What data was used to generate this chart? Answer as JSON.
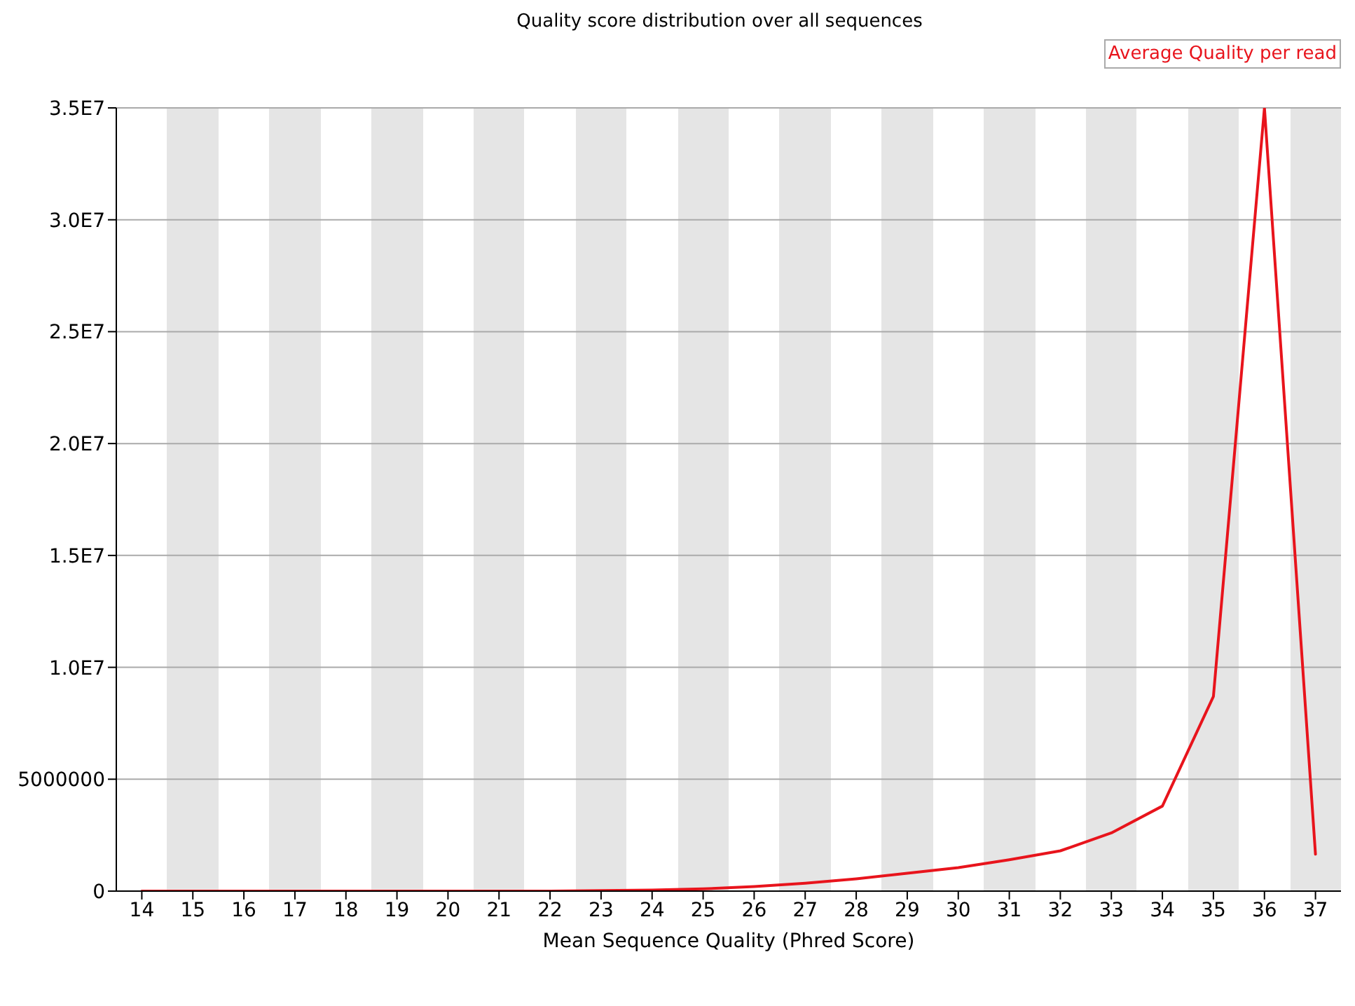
{
  "chart_data": {
    "type": "line",
    "title": "Quality score distribution over all sequences",
    "xlabel": "Mean Sequence Quality (Phred Score)",
    "categories": [
      "14",
      "15",
      "16",
      "17",
      "18",
      "19",
      "20",
      "21",
      "22",
      "23",
      "24",
      "25",
      "26",
      "27",
      "28",
      "29",
      "30",
      "31",
      "32",
      "33",
      "34",
      "35",
      "36",
      "37"
    ],
    "series": [
      {
        "name": "Average Quality per read",
        "color": "#e8141c",
        "values": [
          0,
          0,
          0,
          0,
          0,
          0,
          0,
          0,
          0,
          20000,
          50000,
          100000,
          200000,
          350000,
          550000,
          800000,
          1050000,
          1400000,
          1800000,
          2600000,
          3800000,
          8700000,
          35000000,
          1650000
        ]
      }
    ],
    "ylim": [
      0,
      35000000
    ],
    "yticks": [
      0,
      5000000,
      {
        "value": 10000000,
        "label": "1.0E7"
      },
      {
        "value": 15000000,
        "label": "1.5E7"
      },
      {
        "value": 20000000,
        "label": "2.0E7"
      },
      {
        "value": 25000000,
        "label": "2.5E7"
      },
      {
        "value": 30000000,
        "label": "3.0E7"
      },
      {
        "value": 35000000,
        "label": "3.5E7"
      }
    ],
    "grid": "y",
    "legend": "top right",
    "marker": "none",
    "line_style": "solid"
  }
}
